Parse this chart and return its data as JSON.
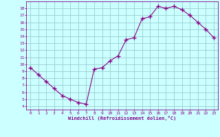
{
  "x": [
    0,
    1,
    2,
    3,
    4,
    5,
    6,
    7,
    8,
    9,
    10,
    11,
    12,
    13,
    14,
    15,
    16,
    17,
    18,
    19,
    20,
    21,
    22,
    23
  ],
  "y": [
    9.5,
    8.5,
    7.5,
    6.5,
    5.5,
    5.0,
    4.5,
    4.3,
    9.3,
    9.5,
    10.5,
    11.2,
    13.5,
    13.8,
    16.5,
    16.8,
    18.3,
    18.0,
    18.3,
    17.8,
    17.0,
    16.0,
    15.0,
    13.8
  ],
  "xlabel": "Windchill (Refroidissement éolien,°C)",
  "line_color": "#880088",
  "marker": "+",
  "bg_color": "#ccffff",
  "grid_color": "#99cccc",
  "label_color": "#880088",
  "spine_color": "#880088",
  "xlim": [
    -0.5,
    23.5
  ],
  "ylim": [
    3.5,
    19.0
  ],
  "xticks": [
    0,
    1,
    2,
    3,
    4,
    5,
    6,
    7,
    8,
    9,
    10,
    11,
    12,
    13,
    14,
    15,
    16,
    17,
    18,
    19,
    20,
    21,
    22,
    23
  ],
  "yticks": [
    4,
    5,
    6,
    7,
    8,
    9,
    10,
    11,
    12,
    13,
    14,
    15,
    16,
    17,
    18
  ]
}
